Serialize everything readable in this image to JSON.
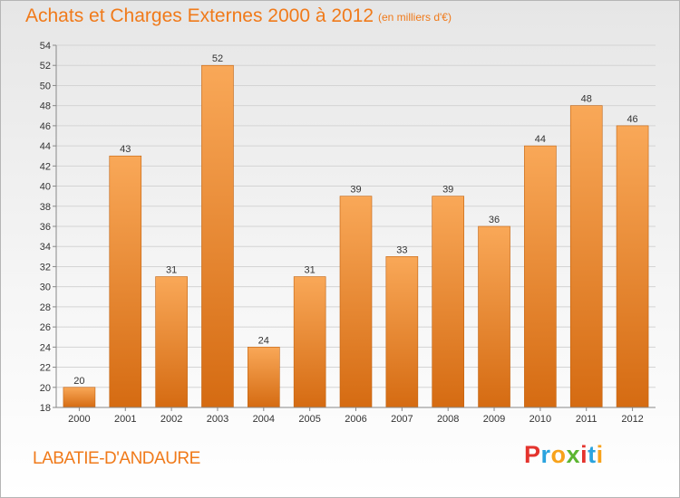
{
  "header": {
    "title": "Achats et Charges Externes 2000 à 2012",
    "subtitle": "(en milliers d'€)"
  },
  "footer": {
    "commune": "LABATIE-D'ANDAURE",
    "logo_letters": [
      "P",
      "r",
      "o",
      "x",
      "i",
      "t",
      "i"
    ],
    "logo_colors": [
      "#e4332d",
      "#2aa3de",
      "#f7a21b",
      "#5cb531",
      "#e4332d",
      "#2aa3de",
      "#f7a21b"
    ]
  },
  "chart_data": {
    "type": "bar",
    "title": "Achats et Charges Externes 2000 à 2012",
    "subtitle": "(en milliers d'€)",
    "xlabel": "",
    "ylabel": "",
    "categories": [
      "2000",
      "2001",
      "2002",
      "2003",
      "2004",
      "2005",
      "2006",
      "2007",
      "2008",
      "2009",
      "2010",
      "2011",
      "2012"
    ],
    "values": [
      20,
      43,
      31,
      52,
      24,
      31,
      39,
      33,
      39,
      36,
      44,
      48,
      46
    ],
    "ylim": [
      18,
      54
    ],
    "yticks": [
      18,
      20,
      22,
      24,
      26,
      28,
      30,
      32,
      34,
      36,
      38,
      40,
      42,
      44,
      46,
      48,
      50,
      52,
      54
    ],
    "grid": true,
    "legend": "none",
    "bar_color_top": "#f9a858",
    "bar_color_bottom": "#d56b12"
  }
}
